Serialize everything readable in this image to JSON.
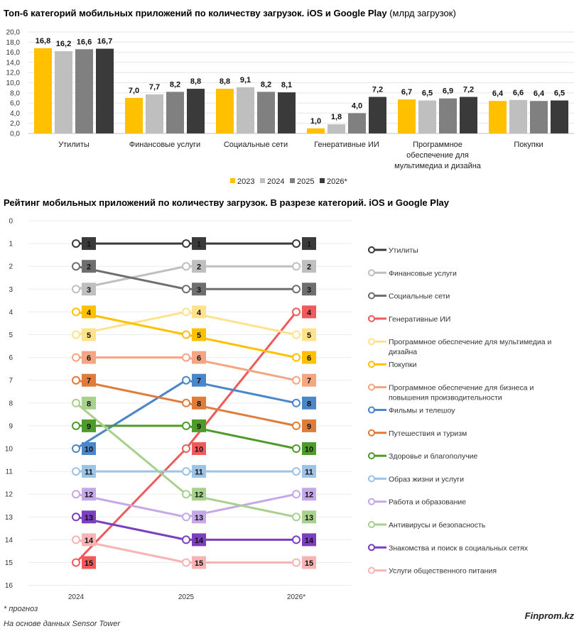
{
  "titles": {
    "chart1_bold": "Топ-6 категорий мобильных приложений по количеству загрузок. iOS и Google Play",
    "chart1_unit": "(млрд загрузок)",
    "chart2": "Рейтинг мобильных приложений по количеству загрузок. В разрезе категорий. iOS и Google Play"
  },
  "footer": {
    "note": "* прогноз",
    "source": "На основе данных Sensor Tower",
    "brand": "Finprom.kz"
  },
  "chart_data": [
    {
      "type": "bar",
      "title": "Топ-6 категорий мобильных приложений по количеству загрузок. iOS и Google Play (млрд загрузок)",
      "categories": [
        [
          "Утилиты"
        ],
        [
          "Финансовые услуги"
        ],
        [
          "Социальные сети"
        ],
        [
          "Генеративные ИИ"
        ],
        [
          "Программное",
          "обеспечение для",
          "мультимедиа и дизайна"
        ],
        [
          "Покупки"
        ]
      ],
      "series": [
        {
          "name": "2023",
          "color": "#FFC000",
          "labels": [
            "16,8",
            "7,0",
            "8,8",
            "1,0",
            "6,7",
            "6,4"
          ],
          "values": [
            16.8,
            7.0,
            8.8,
            1.0,
            6.7,
            6.4
          ]
        },
        {
          "name": "2024",
          "color": "#BFBFBF",
          "labels": [
            "16,2",
            "7,7",
            "9,1",
            "1,8",
            "6,5",
            "6,6"
          ],
          "values": [
            16.2,
            7.7,
            9.1,
            1.8,
            6.5,
            6.6
          ]
        },
        {
          "name": "2025",
          "color": "#808080",
          "labels": [
            "16,6",
            "8,2",
            "8,2",
            "4,0",
            "6,9",
            "6,4"
          ],
          "values": [
            16.6,
            8.2,
            8.2,
            4.0,
            6.9,
            6.4
          ]
        },
        {
          "name": "2026*",
          "color": "#3A3A3A",
          "labels": [
            "16,7",
            "8,8",
            "8,1",
            "7,2",
            "7,2",
            "6,5"
          ],
          "values": [
            16.7,
            8.8,
            8.1,
            7.2,
            7.2,
            6.5
          ]
        }
      ],
      "y_ticks": [
        "0,0",
        "2,0",
        "4,0",
        "6,0",
        "8,0",
        "10,0",
        "12,0",
        "14,0",
        "16,0",
        "18,0",
        "20,0"
      ],
      "ylim": [
        0,
        20
      ],
      "grid": true,
      "legend": "bottom"
    },
    {
      "type": "line",
      "title": "Рейтинг мобильных приложений по количеству загрузок. В разрезе категорий. iOS и Google Play",
      "x": [
        "2024",
        "2025",
        "2026*"
      ],
      "y_ticks": [
        "0",
        "1",
        "2",
        "3",
        "4",
        "5",
        "6",
        "7",
        "8",
        "9",
        "10",
        "11",
        "12",
        "13",
        "14",
        "15",
        "16"
      ],
      "ylim": [
        16,
        0
      ],
      "legend": "right",
      "series": [
        {
          "name": [
            "Утилиты"
          ],
          "color": "#3A3A3A",
          "values": [
            1,
            1,
            1
          ]
        },
        {
          "name": [
            "Финансовые услуги"
          ],
          "color": "#BFBFBF",
          "values": [
            3,
            2,
            2
          ]
        },
        {
          "name": [
            "Социальные сети"
          ],
          "color": "#6E6E6E",
          "values": [
            2,
            3,
            3
          ]
        },
        {
          "name": [
            "Генеративные ИИ"
          ],
          "color": "#F05A5A",
          "values": [
            15,
            10,
            4
          ]
        },
        {
          "name": [
            "Программное обеспечение для мультимедиа и",
            "дизайна"
          ],
          "color": "#FFE28A",
          "values": [
            5,
            4,
            5
          ]
        },
        {
          "name": [
            "Покупки"
          ],
          "color": "#FFC000",
          "values": [
            4,
            5,
            6
          ]
        },
        {
          "name": [
            "Программное обеспечение для бизнеса и",
            "повышения производительности"
          ],
          "color": "#F4A582",
          "values": [
            6,
            6,
            7
          ]
        },
        {
          "name": [
            "Фильмы и телешоу"
          ],
          "color": "#4A86C8",
          "values": [
            10,
            7,
            8
          ]
        },
        {
          "name": [
            "Путешествия и туризм"
          ],
          "color": "#E07B39",
          "values": [
            7,
            8,
            9
          ]
        },
        {
          "name": [
            "Здоровье и благополучие"
          ],
          "color": "#4E9A2A",
          "values": [
            9,
            9,
            10
          ]
        },
        {
          "name": [
            "Образ жизни и услуги"
          ],
          "color": "#9DC3E6",
          "values": [
            11,
            11,
            11
          ]
        },
        {
          "name": [
            "Работа и образование"
          ],
          "color": "#C5A8E8",
          "values": [
            12,
            13,
            12
          ]
        },
        {
          "name": [
            "Антивирусы и безопасность"
          ],
          "color": "#A9D18E",
          "values": [
            8,
            12,
            13
          ]
        },
        {
          "name": [
            "Знакомства и поиск в социальных сетях"
          ],
          "color": "#7B3FBF",
          "values": [
            13,
            14,
            14
          ]
        },
        {
          "name": [
            "Услуги общественного питания"
          ],
          "color": "#F8B4B4",
          "values": [
            14,
            15,
            15
          ]
        }
      ]
    }
  ]
}
